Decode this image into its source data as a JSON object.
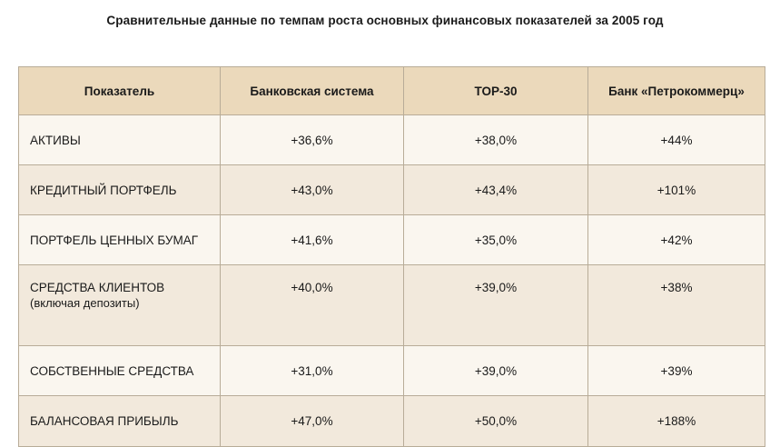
{
  "title": "Сравнительные данные по темпам роста основных финансовых показателей за 2005 год",
  "table": {
    "headers": [
      "Показатель",
      "Банковская система",
      "ТОР-30",
      "Банк «Петрокоммерц»"
    ],
    "rows": [
      {
        "label": "АКТИВЫ",
        "sublabel": "",
        "values": [
          "+36,6%",
          "+38,0%",
          "+44%"
        ]
      },
      {
        "label": "КРЕДИТНЫЙ ПОРТФЕЛЬ",
        "sublabel": "",
        "values": [
          "+43,0%",
          "+43,4%",
          "+101%"
        ]
      },
      {
        "label": "ПОРТФЕЛЬ ЦЕННЫХ БУМАГ",
        "sublabel": "",
        "values": [
          "+41,6%",
          "+35,0%",
          "+42%"
        ]
      },
      {
        "label": "СРЕДСТВА КЛИЕНТОВ",
        "sublabel": "(включая депозиты)",
        "values": [
          "+40,0%",
          "+39,0%",
          "+38%"
        ]
      },
      {
        "label": "СОБСТВЕННЫЕ СРЕДСТВА",
        "sublabel": "",
        "values": [
          "+31,0%",
          "+39,0%",
          "+39%"
        ]
      },
      {
        "label": "БАЛАНСОВАЯ ПРИБЫЛЬ",
        "sublabel": "",
        "values": [
          "+47,0%",
          "+50,0%",
          "+188%"
        ]
      }
    ]
  },
  "colors": {
    "header_bg": "#ebd9bb",
    "row_light": "#faf6ef",
    "row_dark": "#f2e9dc",
    "border": "#b8ac98"
  }
}
